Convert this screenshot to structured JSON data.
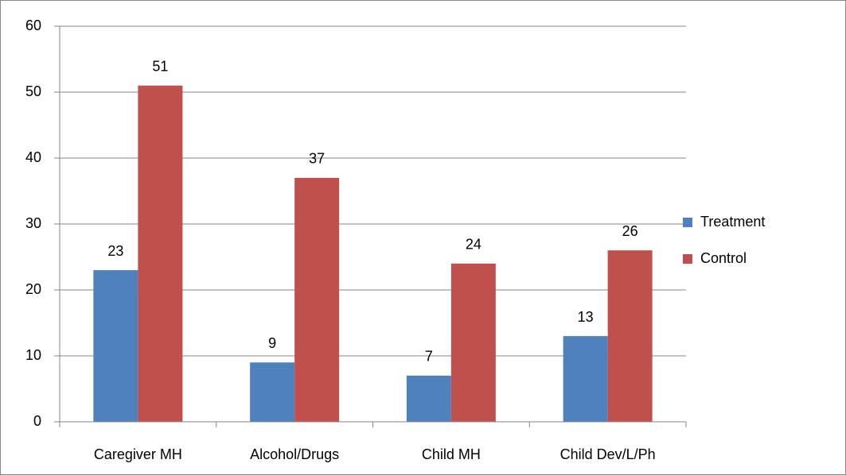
{
  "chart_data": {
    "type": "bar",
    "categories": [
      "Caregiver MH",
      "Alcohol/Drugs",
      "Child MH",
      "Child Dev/L/Ph"
    ],
    "series": [
      {
        "name": "Treatment",
        "color": "#4f81bd",
        "values": [
          23,
          9,
          7,
          13
        ]
      },
      {
        "name": "Control",
        "color": "#c0504d",
        "values": [
          51,
          37,
          24,
          26
        ]
      }
    ],
    "ylim": [
      0,
      60
    ],
    "yticks": [
      0,
      10,
      20,
      30,
      40,
      50,
      60
    ],
    "grid": true,
    "legend": "right"
  }
}
